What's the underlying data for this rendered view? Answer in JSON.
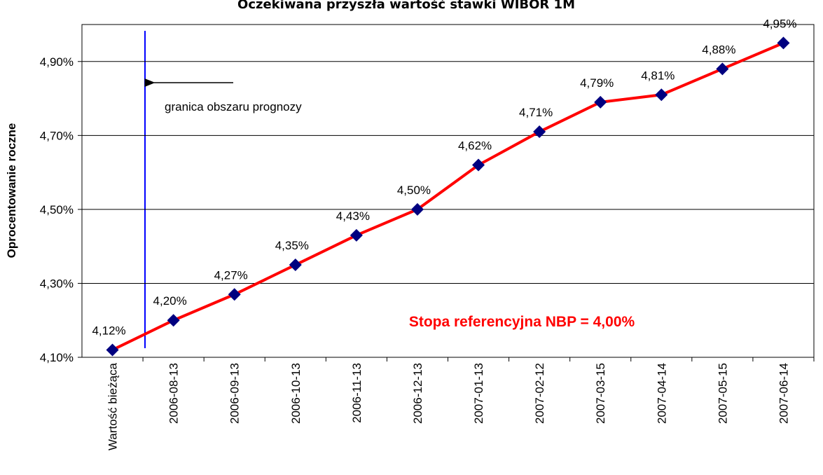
{
  "chart_data": {
    "type": "line",
    "title": "Oczekiwana przyszła wartość stawki WIBOR 1M",
    "y_label": "Oprocentowanie roczne",
    "categories": [
      "Wartość bieżąca",
      "2006-08-13",
      "2006-09-13",
      "2006-10-13",
      "2006-11-13",
      "2006-12-13",
      "2007-01-13",
      "2007-02-12",
      "2007-03-15",
      "2007-04-14",
      "2007-05-15",
      "2007-06-14"
    ],
    "series": [
      {
        "name": "WIBOR 1M",
        "color": "#ff0000",
        "marker_color": "#000080",
        "values": [
          4.12,
          4.2,
          4.27,
          4.35,
          4.43,
          4.5,
          4.62,
          4.71,
          4.79,
          4.81,
          4.88,
          4.95
        ],
        "value_labels": [
          "4,12%",
          "4,20%",
          "4,27%",
          "4,35%",
          "4,43%",
          "4,50%",
          "4,62%",
          "4,71%",
          "4,79%",
          "4,81%",
          "4,88%",
          "4,95%"
        ]
      }
    ],
    "ylim": [
      4.1,
      5.0
    ],
    "yticks": [
      {
        "value": 4.1,
        "label": "4,10%"
      },
      {
        "value": 4.3,
        "label": "4,30%"
      },
      {
        "value": 4.5,
        "label": "4,50%"
      },
      {
        "value": 4.7,
        "label": "4,70%"
      },
      {
        "value": 4.9,
        "label": "4,90%"
      }
    ],
    "grid": true,
    "annotations": [
      "granica obszaru prognozy",
      "Stopa referencyjna NBP = 4,00%"
    ]
  }
}
